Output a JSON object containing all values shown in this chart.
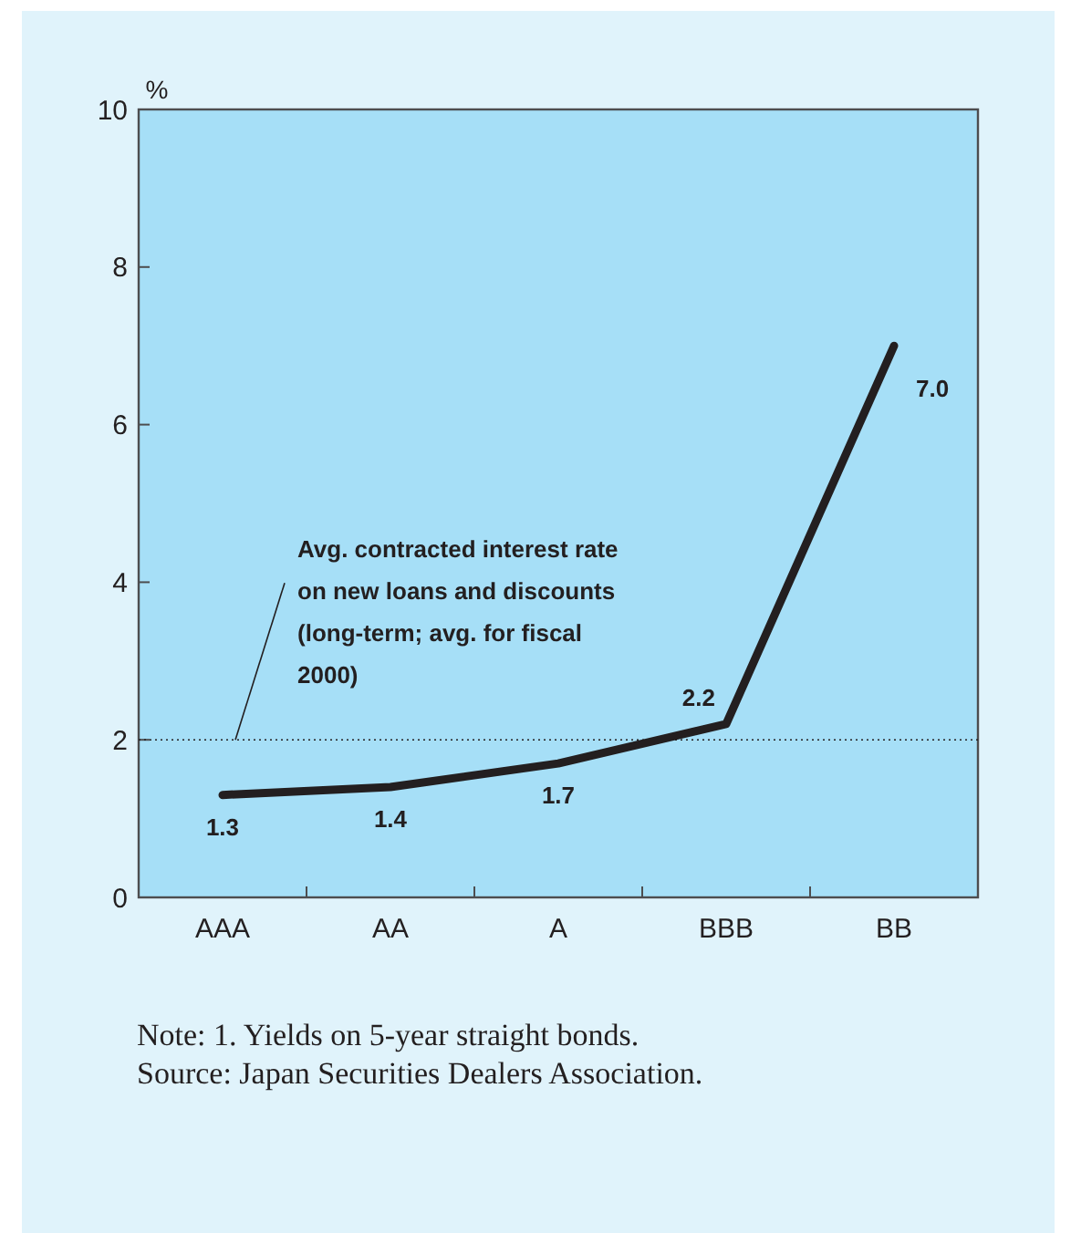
{
  "chart_data": {
    "type": "line",
    "ylabel": "%",
    "categories": [
      "AAA",
      "AA",
      "A",
      "BBB",
      "BB"
    ],
    "series": [
      {
        "color": "#231f20",
        "values": [
          1.3,
          1.4,
          1.7,
          2.2,
          7.0
        ],
        "value_labels": [
          "1.3",
          "1.4",
          "1.7",
          "2.2",
          "7.0"
        ]
      }
    ],
    "ylim": [
      0,
      10
    ],
    "yticks": [
      0,
      2,
      4,
      6,
      8,
      10
    ],
    "grid": false,
    "marker": "none",
    "line_style": "solid",
    "ref_lines": [
      {
        "axis": "y",
        "value": 2.0,
        "label": "Avg. contracted interest rate on new loans and discounts (long-term; avg. for fiscal 2000)",
        "color": "#231f20",
        "line_style": "dotted"
      }
    ],
    "annotations": [
      "Note: 1. Yields on 5-year straight bonds.",
      "Source: Japan Securities Dealers Association."
    ]
  }
}
